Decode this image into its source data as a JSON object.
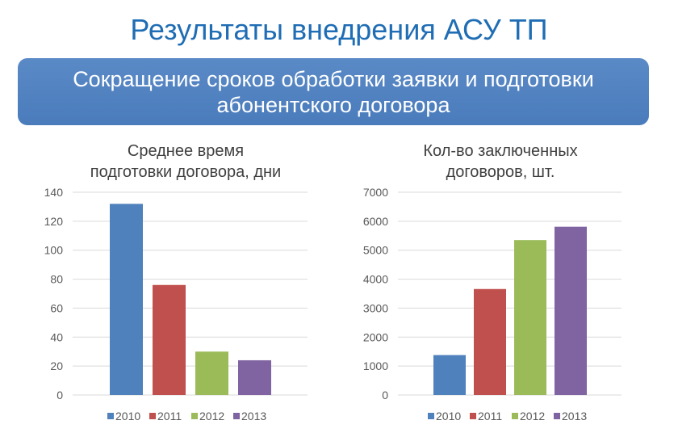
{
  "title": "Результаты внедрения АСУ ТП",
  "banner": {
    "line1": "Сокращение сроков обработки заявки и подготовки",
    "line2": "абонентского договора"
  },
  "colors": {
    "2010": "#4f81bd",
    "2011": "#c0504d",
    "2012": "#9bbb59",
    "2013": "#8064a2",
    "grid": "#d9d9d9"
  },
  "chart_data": [
    {
      "type": "bar",
      "title_lines": [
        "Среднее время",
        "подготовки договора, дни"
      ],
      "categories": [
        "2010",
        "2011",
        "2012",
        "2013"
      ],
      "values": [
        132,
        76,
        30,
        24
      ],
      "ylim": [
        0,
        140
      ],
      "yticks": [
        0,
        20,
        40,
        60,
        80,
        100,
        120,
        140
      ],
      "legend": "bottom",
      "grid": true
    },
    {
      "type": "bar",
      "title_lines": [
        "Кол-во заключенных",
        "договоров, шт."
      ],
      "categories": [
        "2010",
        "2011",
        "2012",
        "2013"
      ],
      "values": [
        1380,
        3660,
        5350,
        5810
      ],
      "ylim": [
        0,
        7000
      ],
      "yticks": [
        0,
        1000,
        2000,
        3000,
        4000,
        5000,
        6000,
        7000
      ],
      "legend": "bottom",
      "grid": true
    }
  ]
}
